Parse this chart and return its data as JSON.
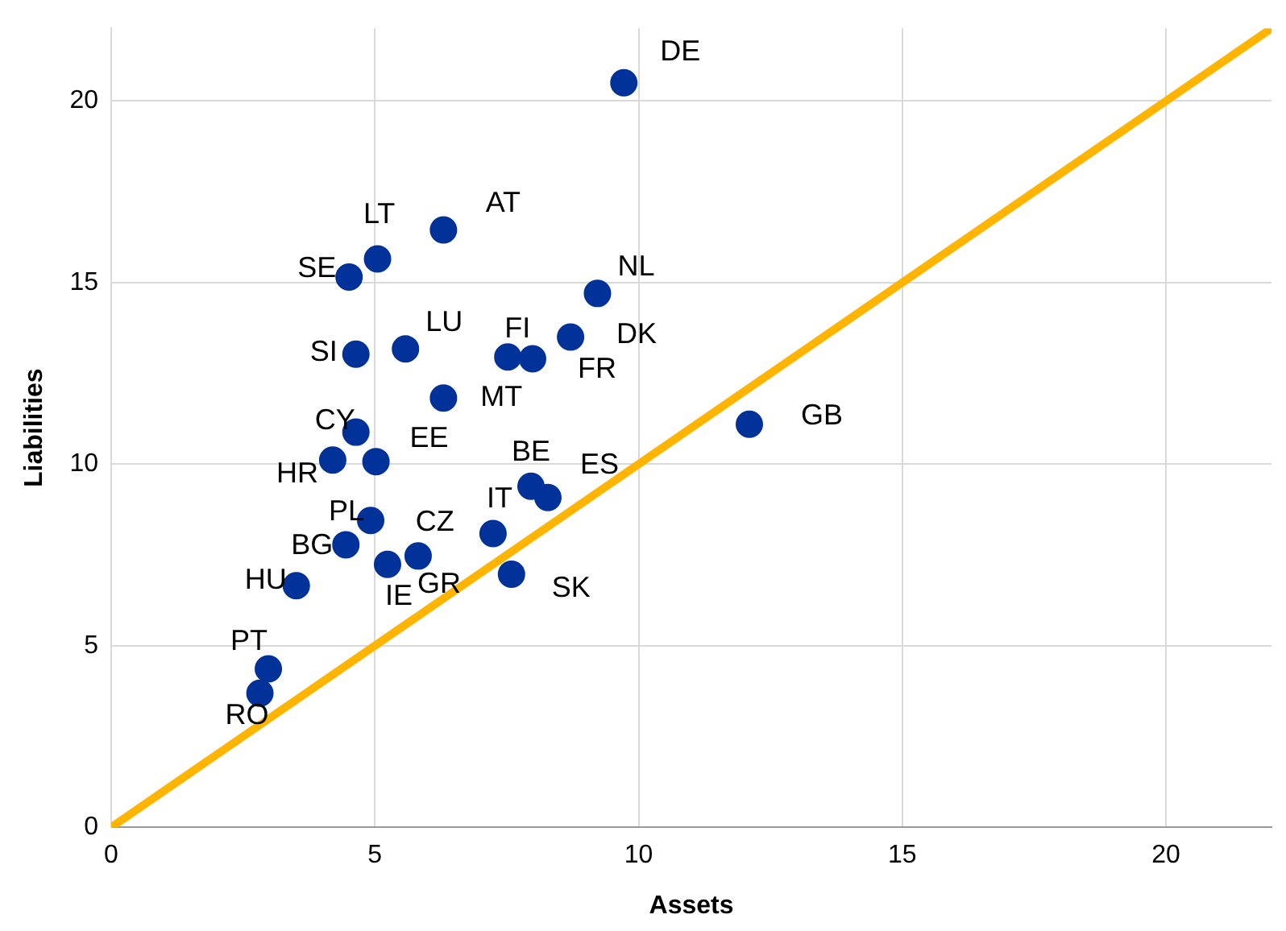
{
  "chart_data": {
    "type": "scatter",
    "xlabel": "Assets",
    "ylabel": "Liabilities",
    "xlim": [
      0,
      22
    ],
    "ylim": [
      0,
      22
    ],
    "xticks": [
      0,
      5,
      10,
      15,
      20
    ],
    "yticks": [
      0,
      5,
      10,
      15,
      20
    ],
    "grid": true,
    "legend": false,
    "series": [
      {
        "color": "#003299",
        "marker": "circle",
        "x": [
          9.72,
          6.3,
          5.05,
          4.51,
          9.22,
          8.71,
          7.52,
          7.99,
          5.58,
          4.64,
          6.3,
          4.64,
          4.2,
          5.02,
          12.1,
          7.96,
          8.28,
          7.24,
          4.92,
          4.45,
          null,
          5.24,
          5.82,
          3.51,
          7.59,
          2.98,
          2.82
        ],
        "values": [
          20.5,
          16.45,
          15.65,
          15.15,
          14.7,
          13.5,
          12.95,
          12.9,
          13.17,
          13.03,
          11.82,
          10.88,
          10.11,
          10.07,
          11.1,
          9.39,
          9.08,
          8.09,
          8.45,
          7.78,
          null,
          7.24,
          7.47,
          6.65,
          6.97,
          4.36,
          3.69
        ]
      },
      {
        "type": "line",
        "color": "#ffb400",
        "marker": "none",
        "x": [
          0,
          22
        ],
        "values": [
          0,
          22
        ]
      }
    ],
    "annotations": [
      {
        "text": "DE",
        "x": 9.72,
        "y": 20.5
      },
      {
        "text": "AT",
        "x": 6.3,
        "y": 16.45
      },
      {
        "text": "LT",
        "x": 5.05,
        "y": 15.65
      },
      {
        "text": "SE",
        "x": 4.51,
        "y": 15.15
      },
      {
        "text": "NL",
        "x": 9.22,
        "y": 14.7
      },
      {
        "text": "DK",
        "x": 8.71,
        "y": 13.5
      },
      {
        "text": "FI",
        "x": 7.52,
        "y": 12.95
      },
      {
        "text": "FR",
        "x": 7.99,
        "y": 12.9
      },
      {
        "text": "LU",
        "x": 5.58,
        "y": 13.17
      },
      {
        "text": "SI",
        "x": 4.64,
        "y": 13.03
      },
      {
        "text": "MT",
        "x": 6.3,
        "y": 11.82
      },
      {
        "text": "CY",
        "x": 4.64,
        "y": 10.88
      },
      {
        "text": "HR",
        "x": 4.2,
        "y": 10.11
      },
      {
        "text": "EE",
        "x": 5.02,
        "y": 10.07
      },
      {
        "text": "GB",
        "x": 12.1,
        "y": 11.1
      },
      {
        "text": "BE",
        "x": 7.96,
        "y": 9.39
      },
      {
        "text": "ES",
        "x": 8.28,
        "y": 9.08
      },
      {
        "text": "IT",
        "x": 7.24,
        "y": 8.09
      },
      {
        "text": "PL",
        "x": 4.92,
        "y": 8.45
      },
      {
        "text": "BG",
        "x": 4.45,
        "y": 7.78
      },
      {
        "text": "CZ",
        "x": 5.8,
        "y": 7.51
      },
      {
        "text": "IE",
        "x": 5.24,
        "y": 7.24
      },
      {
        "text": "GR",
        "x": 5.82,
        "y": 7.47
      },
      {
        "text": "HU",
        "x": 3.51,
        "y": 6.65
      },
      {
        "text": "SK",
        "x": 7.59,
        "y": 6.97
      },
      {
        "text": "PT",
        "x": 2.98,
        "y": 4.36
      },
      {
        "text": "RO",
        "x": 2.82,
        "y": 3.69
      }
    ]
  }
}
